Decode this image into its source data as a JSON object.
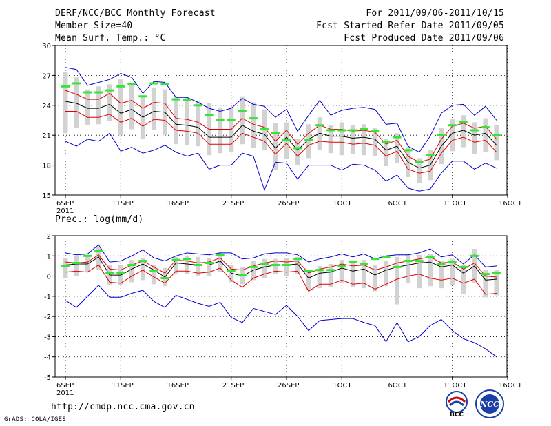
{
  "header": {
    "title": "DERF/NCC/BCC Monthly Forecast",
    "member_size": "Member Size=40",
    "variable": "Mean Surf. Temp.: °C",
    "period": "For 2011/09/06-2011/10/15",
    "refer_date": "Fcst Started Refer Date 2011/09/05",
    "produced_date": "Fcst Produced Date 2011/09/06"
  },
  "footer": {
    "url": "http://cmdp.ncc.cma.gov.cn",
    "credit": "GrADS: COLA/IGES",
    "logo1_text": "BCC",
    "logo2_text": "NCC"
  },
  "colors": {
    "blue": "#0000cc",
    "red": "#e00000",
    "black": "#000000",
    "green": "#33e633",
    "box": "#d2d2d2",
    "grid": "#000000"
  },
  "chart_data": [
    {
      "type": "line",
      "title": "Mean Surf. Temp.: °C",
      "ylabel": "°C",
      "ylim": [
        15,
        30
      ],
      "yticks": [
        15,
        18,
        21,
        24,
        27,
        30
      ],
      "x_tick_labels": [
        "6SEP\n2011",
        "11SEP",
        "16SEP",
        "21SEP",
        "26SEP",
        "1OCT",
        "6OCT",
        "11OCT",
        "16OCT"
      ],
      "days": 40,
      "series": [
        {
          "name": "max",
          "color": "#0000cc",
          "values": [
            27.8,
            27.6,
            26.0,
            26.3,
            26.6,
            27.2,
            26.8,
            25.2,
            26.4,
            26.3,
            24.8,
            24.8,
            24.3,
            23.7,
            23.4,
            23.7,
            24.7,
            24.1,
            23.9,
            22.8,
            23.6,
            21.4,
            23.0,
            24.5,
            23.0,
            23.5,
            23.7,
            23.8,
            23.6,
            22.1,
            22.2,
            19.9,
            19.3,
            20.9,
            23.2,
            24.0,
            24.1,
            23.0,
            23.9,
            22.5
          ]
        },
        {
          "name": "upper",
          "color": "#e00000",
          "values": [
            25.5,
            25.1,
            24.6,
            24.6,
            25.2,
            24.2,
            24.5,
            23.7,
            24.3,
            24.2,
            22.7,
            22.6,
            22.3,
            21.6,
            21.6,
            21.6,
            22.7,
            22.1,
            21.8,
            20.4,
            21.5,
            20.1,
            21.2,
            22.0,
            21.6,
            21.6,
            21.4,
            21.5,
            21.3,
            20.1,
            20.5,
            18.9,
            18.3,
            18.6,
            20.6,
            21.9,
            22.2,
            21.7,
            21.9,
            20.6
          ]
        },
        {
          "name": "mean",
          "color": "#000000",
          "values": [
            24.4,
            24.2,
            23.7,
            23.7,
            24.1,
            23.2,
            23.6,
            22.8,
            23.4,
            23.3,
            22.1,
            22.0,
            21.8,
            20.8,
            20.8,
            20.8,
            22.0,
            21.4,
            21.1,
            19.7,
            20.8,
            19.5,
            20.6,
            21.2,
            20.9,
            20.9,
            20.7,
            20.8,
            20.6,
            19.5,
            19.9,
            18.3,
            17.7,
            18.0,
            19.9,
            21.2,
            21.5,
            21.0,
            21.2,
            20.0
          ]
        },
        {
          "name": "lower",
          "color": "#e00000",
          "values": [
            23.4,
            23.4,
            22.8,
            22.8,
            23.1,
            22.3,
            22.7,
            21.9,
            22.6,
            22.5,
            21.5,
            21.4,
            21.2,
            20.1,
            20.1,
            20.1,
            21.2,
            20.8,
            20.4,
            19.1,
            20.2,
            18.9,
            20.0,
            20.4,
            20.3,
            20.3,
            20.1,
            20.2,
            20.0,
            18.9,
            19.4,
            17.6,
            17.2,
            17.4,
            19.2,
            20.5,
            20.8,
            20.3,
            20.5,
            19.3
          ]
        },
        {
          "name": "min",
          "color": "#0000cc",
          "values": [
            20.4,
            19.9,
            20.6,
            20.4,
            21.2,
            19.4,
            19.8,
            19.2,
            19.5,
            20.0,
            19.3,
            18.9,
            19.2,
            17.6,
            18.0,
            18.0,
            19.2,
            18.9,
            15.5,
            18.3,
            18.2,
            16.6,
            18.0,
            18.0,
            18.0,
            17.5,
            18.1,
            18.0,
            17.5,
            16.4,
            17.0,
            15.7,
            15.4,
            15.6,
            17.2,
            18.4,
            18.4,
            17.6,
            18.2,
            17.7
          ]
        },
        {
          "name": "ensemble_box_top",
          "color": "#d2d2d2",
          "values": [
            27.3,
            26.8,
            25.6,
            25.9,
            26.1,
            26.6,
            26.0,
            25.0,
            25.8,
            25.6,
            24.9,
            24.8,
            24.4,
            24.2,
            23.7,
            23.8,
            24.9,
            24.3,
            23.6,
            22.2,
            22.3,
            20.6,
            22.1,
            22.8,
            22.0,
            22.3,
            22.0,
            22.1,
            21.7,
            20.6,
            21.2,
            19.8,
            18.7,
            19.5,
            21.7,
            22.6,
            23.0,
            22.3,
            22.7,
            22.0
          ]
        },
        {
          "name": "ensemble_box_bottom",
          "color": "#d2d2d2",
          "values": [
            21.2,
            21.7,
            22.0,
            22.1,
            22.4,
            21.0,
            21.6,
            20.6,
            21.5,
            21.0,
            20.1,
            20.0,
            19.9,
            19.0,
            19.2,
            19.3,
            20.1,
            19.7,
            19.5,
            17.5,
            18.6,
            18.0,
            18.7,
            19.5,
            19.2,
            19.0,
            19.1,
            19.0,
            18.9,
            17.9,
            18.2,
            16.8,
            16.2,
            16.5,
            18.1,
            19.4,
            19.8,
            19.1,
            19.3,
            18.5
          ]
        },
        {
          "name": "observed_or_median_marker",
          "color": "#33e633",
          "values": [
            25.9,
            26.2,
            25.3,
            25.3,
            25.5,
            25.9,
            26.1,
            24.9,
            26.2,
            26.1,
            24.6,
            24.5,
            24.0,
            23.0,
            22.5,
            22.5,
            23.4,
            22.7,
            21.6,
            21.2,
            20.5,
            19.7,
            20.5,
            22.0,
            21.5,
            21.5,
            21.5,
            21.6,
            21.4,
            20.3,
            20.8,
            19.5,
            18.3,
            19.0,
            21.0,
            22.0,
            22.3,
            21.5,
            21.8,
            21.0
          ]
        }
      ]
    },
    {
      "type": "line",
      "title": "Prec.: log(mm/d)",
      "ylabel": "log(mm/d)",
      "ylim": [
        -5,
        2
      ],
      "yticks": [
        -5,
        -4,
        -3,
        -2,
        -1,
        0,
        1,
        2
      ],
      "x_tick_labels": [
        "6SEP\n2011",
        "11SEP",
        "16SEP",
        "21SEP",
        "26SEP",
        "1OCT",
        "6OCT",
        "11OCT",
        "16OCT"
      ],
      "days": 40,
      "series": [
        {
          "name": "max",
          "color": "#0000cc",
          "values": [
            1.15,
            1.05,
            1.1,
            1.55,
            0.7,
            0.75,
            1.0,
            1.3,
            0.9,
            0.75,
            1.0,
            1.15,
            1.1,
            1.05,
            1.15,
            1.15,
            0.85,
            0.9,
            1.1,
            1.15,
            1.15,
            1.05,
            0.7,
            0.85,
            0.95,
            1.1,
            0.95,
            1.1,
            0.85,
            1.0,
            1.05,
            1.05,
            1.15,
            1.35,
            0.95,
            1.05,
            0.6,
            1.05,
            0.45,
            0.5
          ]
        },
        {
          "name": "upper",
          "color": "#e00000",
          "values": [
            0.7,
            0.65,
            0.7,
            1.05,
            0.35,
            0.3,
            0.55,
            0.75,
            0.45,
            0.15,
            0.8,
            0.75,
            0.65,
            0.7,
            0.9,
            0.35,
            0.3,
            0.5,
            0.65,
            0.75,
            0.7,
            0.75,
            0.15,
            0.35,
            0.45,
            0.6,
            0.5,
            0.55,
            0.3,
            0.45,
            0.65,
            0.75,
            0.85,
            0.95,
            0.65,
            0.7,
            0.35,
            0.65,
            0.0,
            -0.05
          ]
        },
        {
          "name": "mean",
          "color": "#000000",
          "values": [
            0.55,
            0.6,
            0.6,
            0.95,
            0.05,
            0.05,
            0.35,
            0.6,
            0.3,
            -0.05,
            0.65,
            0.6,
            0.55,
            0.55,
            0.75,
            0.15,
            0.0,
            0.3,
            0.45,
            0.55,
            0.55,
            0.6,
            -0.1,
            0.15,
            0.2,
            0.4,
            0.25,
            0.35,
            0.05,
            0.3,
            0.45,
            0.55,
            0.65,
            0.7,
            0.45,
            0.55,
            0.15,
            0.5,
            -0.2,
            -0.15
          ]
        },
        {
          "name": "lower",
          "color": "#e00000",
          "values": [
            0.2,
            0.25,
            0.2,
            0.55,
            -0.3,
            -0.35,
            0.0,
            0.3,
            -0.05,
            -0.35,
            0.25,
            0.25,
            0.15,
            0.2,
            0.4,
            -0.2,
            -0.55,
            -0.1,
            0.1,
            0.25,
            0.2,
            0.25,
            -0.75,
            -0.4,
            -0.4,
            -0.2,
            -0.4,
            -0.35,
            -0.65,
            -0.4,
            -0.15,
            0.0,
            0.1,
            -0.1,
            -0.2,
            -0.1,
            -0.35,
            -0.15,
            -0.9,
            -0.85
          ]
        },
        {
          "name": "min",
          "color": "#0000cc",
          "values": [
            -1.2,
            -1.55,
            -1.0,
            -0.45,
            -1.05,
            -1.05,
            -0.85,
            -0.7,
            -1.25,
            -1.55,
            -0.95,
            -1.15,
            -1.35,
            -1.5,
            -1.3,
            -2.05,
            -2.3,
            -1.6,
            -1.75,
            -1.9,
            -1.45,
            -2.0,
            -2.7,
            -2.2,
            -2.15,
            -2.1,
            -2.1,
            -2.3,
            -2.45,
            -3.25,
            -2.3,
            -3.25,
            -3.0,
            -2.45,
            -2.15,
            -2.7,
            -3.1,
            -3.3,
            -3.6,
            -4.0
          ]
        },
        {
          "name": "ensemble_box_top",
          "color": "#d2d2d2",
          "values": [
            0.9,
            1.0,
            1.05,
            1.45,
            0.55,
            0.55,
            0.8,
            0.9,
            0.55,
            0.4,
            0.95,
            1.0,
            0.95,
            0.9,
            1.2,
            0.55,
            0.45,
            0.75,
            0.85,
            0.85,
            0.9,
            0.95,
            0.3,
            0.5,
            0.6,
            0.8,
            0.7,
            0.8,
            0.55,
            0.75,
            0.95,
            1.05,
            1.05,
            1.1,
            0.75,
            0.85,
            0.55,
            1.35,
            0.3,
            0.3
          ]
        },
        {
          "name": "ensemble_box_bottom",
          "color": "#d2d2d2",
          "values": [
            -0.1,
            0.0,
            0.2,
            0.3,
            -0.45,
            -0.45,
            -0.3,
            -0.2,
            -0.4,
            -0.5,
            0.1,
            0.1,
            0.0,
            0.0,
            0.2,
            -0.3,
            -0.4,
            -0.2,
            -0.1,
            0.1,
            0.0,
            0.1,
            -0.7,
            -0.6,
            -0.55,
            -0.35,
            -0.55,
            -0.6,
            -0.75,
            -0.5,
            -1.4,
            -0.35,
            -0.6,
            -0.5,
            -0.6,
            -0.45,
            -0.9,
            -0.35,
            -1.05,
            -0.95
          ]
        },
        {
          "name": "observed_or_median_marker",
          "color": "#33e633",
          "values": [
            0.5,
            0.65,
            1.0,
            1.25,
            0.15,
            0.15,
            0.55,
            0.75,
            0.25,
            -0.1,
            0.8,
            0.85,
            0.55,
            0.65,
            1.05,
            0.25,
            0.05,
            0.45,
            0.6,
            0.55,
            0.55,
            0.85,
            0.25,
            0.3,
            0.3,
            0.5,
            0.7,
            0.6,
            0.85,
            0.95,
            0.45,
            0.75,
            0.75,
            0.95,
            0.6,
            0.7,
            0.45,
            1.0,
            0.1,
            0.15
          ]
        }
      ]
    }
  ]
}
